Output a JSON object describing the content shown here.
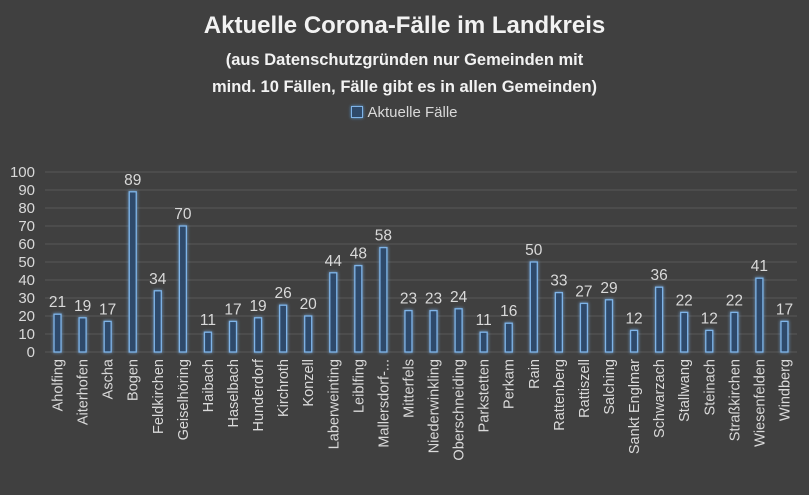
{
  "chart_data": {
    "type": "bar",
    "title": "Aktuelle Corona-Fälle im Landkreis",
    "subtitle_line1": "(aus Datenschutzgründen nur Gemeinden mit",
    "subtitle_line2": "mind. 10 Fällen, Fälle gibt es in allen Gemeinden)",
    "legend": "Aktuelle Fälle",
    "ylim": [
      0,
      100
    ],
    "yticks": [
      0,
      10,
      20,
      30,
      40,
      50,
      60,
      70,
      80,
      90,
      100
    ],
    "categories": [
      "Aholfing",
      "Aiterhofen",
      "Ascha",
      "Bogen",
      "Feldkirchen",
      "Geiselhöring",
      "Haibach",
      "Haselbach",
      "Hunderdorf",
      "Kirchroth",
      "Konzell",
      "Laberweinting",
      "Leiblfing",
      "Mallersdorf-...",
      "Mitterfels",
      "Niederwinkling",
      "Oberschneiding",
      "Parkstetten",
      "Perkam",
      "Rain",
      "Rattenberg",
      "Rattiszell",
      "Salching",
      "Sankt Englmar",
      "Schwarzach",
      "Stallwang",
      "Steinach",
      "Straßkirchen",
      "Wiesenfelden",
      "Windberg"
    ],
    "series": [
      {
        "name": "Aktuelle Fälle",
        "values": [
          21,
          19,
          17,
          89,
          34,
          70,
          11,
          17,
          19,
          26,
          20,
          44,
          48,
          58,
          23,
          23,
          24,
          11,
          16,
          50,
          33,
          27,
          29,
          12,
          36,
          22,
          12,
          22,
          41,
          17
        ]
      }
    ],
    "colors": {
      "bar_fill": "#2e4a6b",
      "bar_stroke": "#7fb4e8",
      "glow": "#5b9bd5",
      "grid": "#595959",
      "text": "#d9d9d9"
    }
  }
}
